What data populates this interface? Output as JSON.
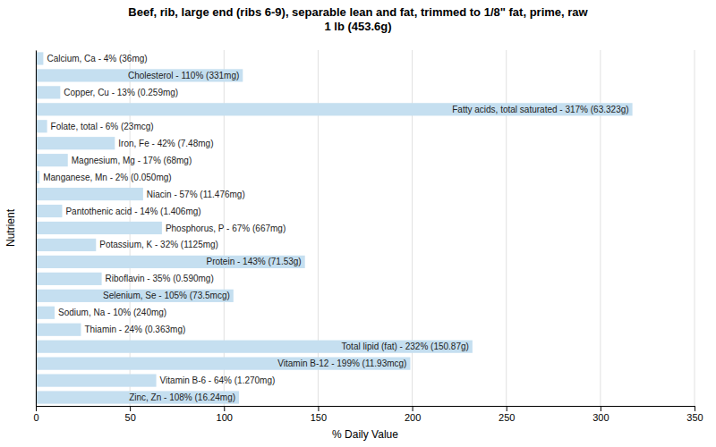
{
  "chart_data": {
    "type": "bar",
    "orientation": "horizontal",
    "title": "Beef, rib, large end (ribs 6-9), separable lean and fat, trimmed to 1/8\" fat, prime, raw\n1 lb (453.6g)",
    "xlabel": "% Daily Value",
    "ylabel": "Nutrient",
    "categories": [
      "Calcium, Ca - 4% (36mg)",
      "Cholesterol - 110% (331mg)",
      "Copper, Cu - 13% (0.259mg)",
      "Fatty acids, total saturated - 317% (63.323g)",
      "Folate, total - 6% (23mcg)",
      "Iron, Fe - 42% (7.48mg)",
      "Magnesium, Mg - 17% (68mg)",
      "Manganese, Mn - 2% (0.050mg)",
      "Niacin - 57% (11.476mg)",
      "Pantothenic acid - 14% (1.406mg)",
      "Phosphorus, P - 67% (667mg)",
      "Potassium, K - 32% (1125mg)",
      "Protein - 143% (71.53g)",
      "Riboflavin - 35% (0.590mg)",
      "Selenium, Se - 105% (73.5mcg)",
      "Sodium, Na - 10% (240mg)",
      "Thiamin - 24% (0.363mg)",
      "Total lipid (fat) - 232% (150.87g)",
      "Vitamin B-12 - 199% (11.93mcg)",
      "Vitamin B-6 - 64% (1.270mg)",
      "Zinc, Zn - 108% (16.24mg)"
    ],
    "values": [
      4,
      110,
      13,
      317,
      6,
      42,
      17,
      2,
      57,
      14,
      67,
      32,
      143,
      35,
      105,
      10,
      24,
      232,
      199,
      64,
      108
    ],
    "color": "#c5dff0",
    "xlim": [
      0,
      350
    ],
    "xticks": [
      0,
      50,
      100,
      150,
      200,
      250,
      300,
      350
    ],
    "grid": true,
    "tick_labels": "x"
  }
}
